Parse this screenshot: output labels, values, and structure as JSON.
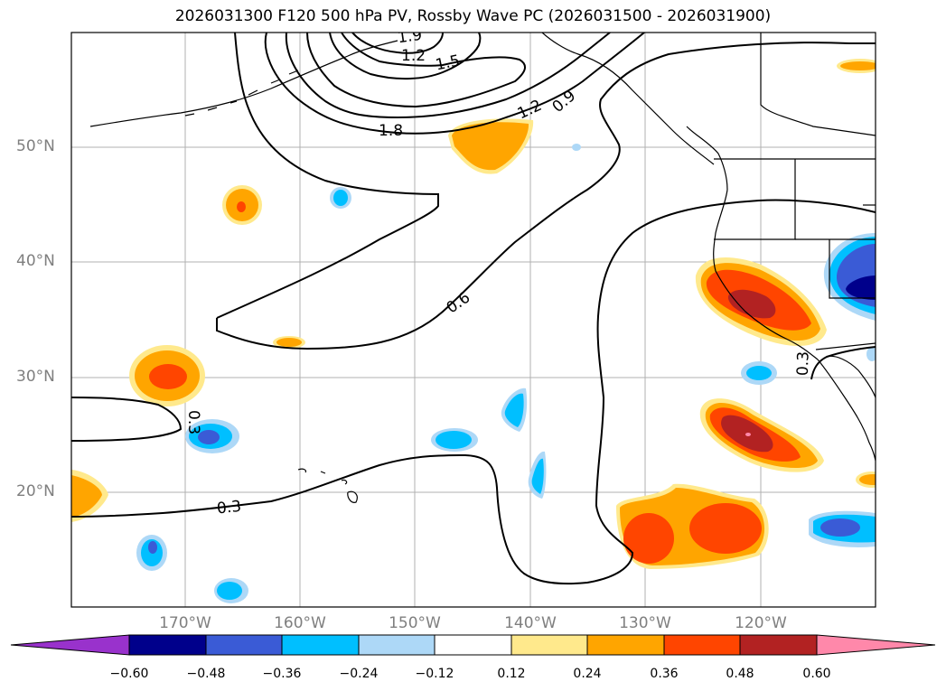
{
  "title": "2026031300 F120 500 hPa PV, Rossby Wave PC (2026031500 - 2026031900)",
  "latitude_labels": [
    "50°N",
    "40°N",
    "30°N",
    "20°N"
  ],
  "longitude_labels": [
    "170°W",
    "160°W",
    "150°W",
    "140°W",
    "130°W",
    "120°W"
  ],
  "contour_labels": [
    "1.9",
    "1.2",
    "1.5",
    "1.8",
    "1.2",
    "0.9",
    "0.6",
    "0.3",
    "0.3",
    "0.3"
  ],
  "colorbar": {
    "tick_labels": [
      "−0.60",
      "−0.48",
      "−0.36",
      "−0.24",
      "−0.12",
      "0.12",
      "0.24",
      "0.36",
      "0.48",
      "0.60"
    ],
    "colors": [
      "#9932cc",
      "#00008b",
      "#3a5bd6",
      "#00bfff",
      "#add8f7",
      "#ffffff",
      "#ffe98c",
      "#ffa500",
      "#ff4500",
      "#b22222",
      "#ff88aa"
    ]
  },
  "colors": {
    "positive_1": "#ffe98c",
    "positive_2": "#ffa500",
    "positive_3": "#ff4500",
    "positive_4": "#b22222",
    "positive_5": "#ff88aa",
    "negative_1": "#add8f7",
    "negative_2": "#00bfff",
    "negative_3": "#3a5bd6",
    "negative_4": "#00008b"
  }
}
